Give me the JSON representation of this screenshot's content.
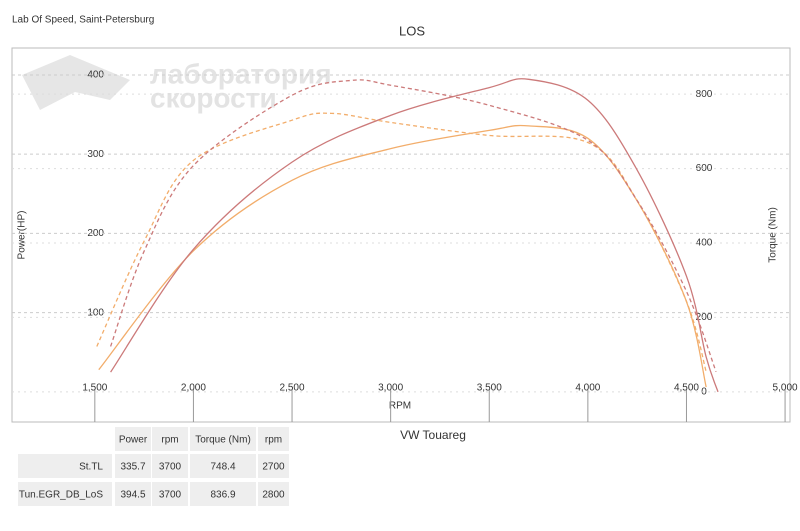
{
  "chart_data": {
    "type": "line",
    "header": "Lab Of Speed, Saint-Petersburg",
    "title": "LOS",
    "subtitle": "VW Touareg",
    "watermark": [
      "лаборатория",
      "скорости"
    ],
    "xlabel": "RPM",
    "ylabel": "Power(HP)",
    "y2label": "Torque (Nm)",
    "xlim": [
      1080,
      5025
    ],
    "xticks": [
      {
        "value": 1500,
        "label": "1,500"
      },
      {
        "value": 2000,
        "label": "2,000"
      },
      {
        "value": 2500,
        "label": "2,500"
      },
      {
        "value": 3000,
        "label": "3,000"
      },
      {
        "value": 3500,
        "label": "3,500"
      },
      {
        "value": 4000,
        "label": "4,000"
      },
      {
        "value": 4500,
        "label": "4,500"
      },
      {
        "value": 5000,
        "label": "5,000"
      }
    ],
    "ylim": [
      -38,
      434
    ],
    "yticks": [
      100,
      200,
      300,
      400
    ],
    "y2lim": [
      -81,
      924
    ],
    "y2ticks": [
      0,
      200,
      400,
      600,
      800
    ],
    "grid": true,
    "series": [
      {
        "name": "St.TL",
        "color": "#f2ad6b",
        "dashed": false,
        "axis": "y",
        "x": [
          1520,
          2000,
          2500,
          3000,
          3500,
          3700,
          4000,
          4250,
          4500,
          4600
        ],
        "values": [
          28,
          178,
          267,
          307,
          330,
          335.7,
          320,
          241,
          114,
          6
        ]
      },
      {
        "name": "Tun.EGR_DB_LoS",
        "color": "#cc7a7a",
        "dashed": false,
        "axis": "y",
        "x": [
          1580,
          2000,
          2500,
          3000,
          3500,
          3700,
          4000,
          4250,
          4500,
          4600,
          4660
        ],
        "values": [
          25,
          180,
          290,
          349,
          384,
          394.5,
          368,
          280,
          146,
          44,
          0
        ]
      },
      {
        "name": "St.TL",
        "color": "#f2ad6b",
        "dashed": true,
        "axis": "y2",
        "x": [
          1510,
          1750,
          2000,
          2500,
          2700,
          3000,
          3500,
          4000,
          4250,
          4500,
          4600
        ],
        "values": [
          122,
          405,
          622,
          730,
          748.4,
          724,
          689,
          670,
          514,
          243,
          54
        ]
      },
      {
        "name": "Tun.EGR_DB_LoS",
        "color": "#cc7a7a",
        "dashed": true,
        "axis": "y2",
        "x": [
          1580,
          1750,
          2000,
          2500,
          2800,
          3000,
          3500,
          4000,
          4250,
          4500,
          4650
        ],
        "values": [
          122,
          378,
          608,
          797,
          836.9,
          824,
          770,
          676,
          514,
          270,
          54
        ]
      }
    ]
  },
  "table": {
    "header": [
      "Power",
      "rpm",
      "Torque (Nm)",
      "rpm"
    ],
    "rows": [
      {
        "name": "St.TL",
        "color": "#e8892e",
        "cells": [
          335.7,
          3700,
          748.4,
          2700
        ]
      },
      {
        "name": "Tun.EGR_DB_LoS",
        "color": "#c0392b",
        "cells": [
          394.5,
          3700,
          836.9,
          2800
        ]
      }
    ]
  }
}
